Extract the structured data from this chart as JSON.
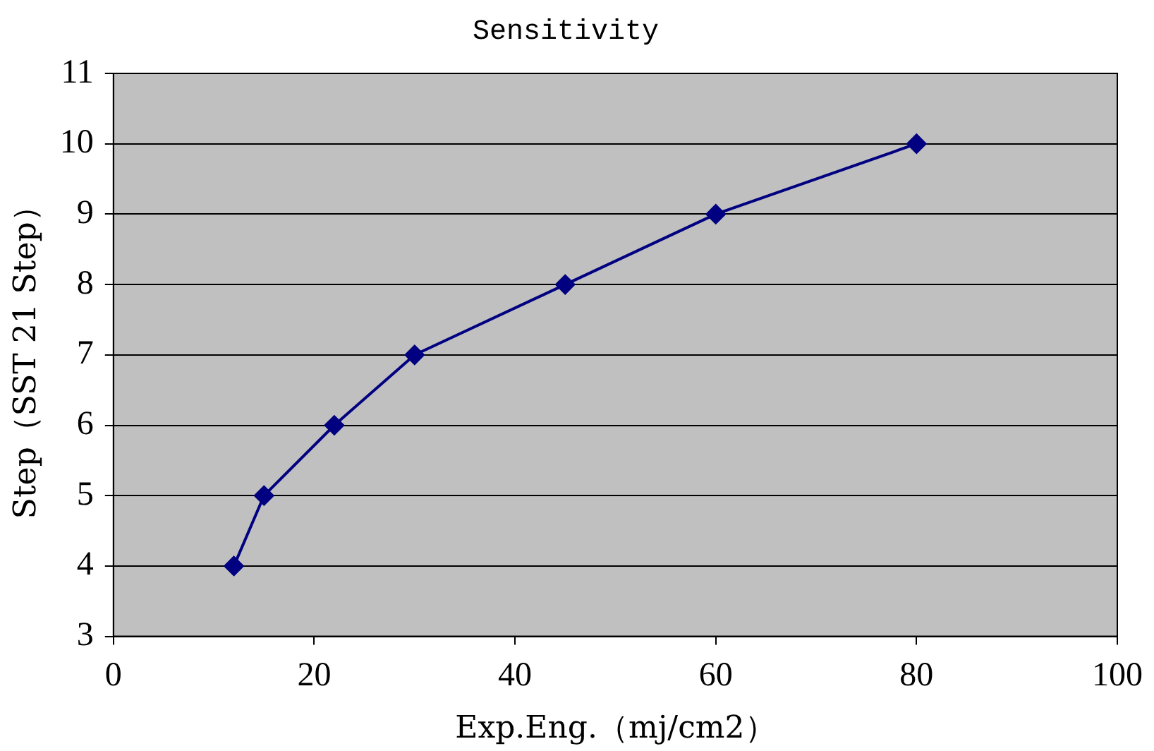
{
  "chart_data": {
    "type": "line",
    "title": "Sensitivity",
    "xlabel": "Exp.Eng.（mj/cm2）",
    "ylabel": "Step（SST 21 Step）",
    "x": [
      12,
      15,
      22,
      30,
      45,
      60,
      80
    ],
    "series": [
      {
        "color": "#000080",
        "values": [
          4,
          5,
          6,
          7,
          8,
          9,
          10
        ]
      }
    ],
    "xlim": [
      0,
      100
    ],
    "xticks": [
      0,
      20,
      40,
      60,
      80,
      100
    ],
    "ylim": [
      3,
      11
    ],
    "yticks": [
      3,
      4,
      5,
      6,
      7,
      8,
      9,
      10,
      11
    ],
    "grid": "y",
    "legend": false,
    "marker": "diamond",
    "line_style": "solid"
  }
}
